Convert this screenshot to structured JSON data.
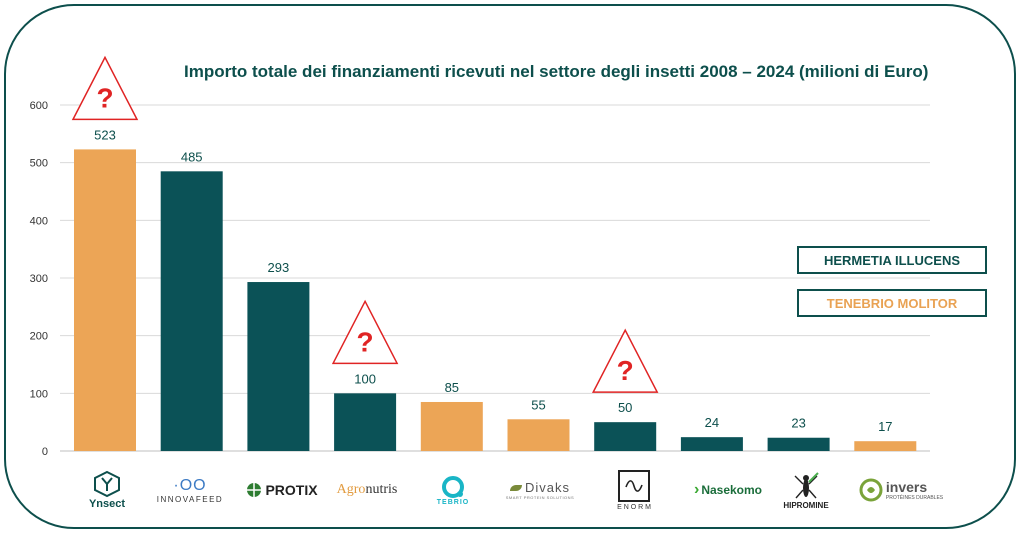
{
  "colors": {
    "hermetia": "#0b5257",
    "tenebrio": "#eca556",
    "frame": "#0d4f4c",
    "warning": "#e02424"
  },
  "chart_data": {
    "type": "bar",
    "title": "Importo totale dei finanziamenti ricevuti nel settore degli insetti 2008 – 2024 (milioni di Euro)",
    "categories": [
      "Ynsect",
      "INNOVAFEED",
      "PROTIX",
      "Agronutris",
      "TEBRIO",
      "Divaks",
      "ENORM",
      "Nasekomo",
      "HIPROMINE",
      "invers"
    ],
    "values": [
      523,
      485,
      293,
      100,
      85,
      55,
      50,
      24,
      23,
      17
    ],
    "species": [
      "tenebrio",
      "hermetia",
      "hermetia",
      "hermetia",
      "tenebrio",
      "tenebrio",
      "hermetia",
      "hermetia",
      "hermetia",
      "tenebrio"
    ],
    "labels": [
      "523",
      "485",
      "293",
      "100",
      "85",
      "55",
      "50",
      "24",
      "23",
      "17"
    ],
    "warning_marks": [
      0,
      3,
      6
    ],
    "warning_symbol": "?",
    "ylim": [
      0,
      600
    ],
    "yticks": [
      "0",
      "100",
      "200",
      "300",
      "400",
      "500",
      "600"
    ],
    "grid": true,
    "legend": [
      {
        "label": "HERMETIA ILLUCENS",
        "key": "hermetia"
      },
      {
        "label": "TENEBRIO MOLITOR",
        "key": "tenebrio"
      }
    ],
    "legend_position": "right"
  },
  "logos": {
    "ynsect": "Ynsect",
    "innovafeed_mark": "·OO",
    "innovafeed": "INNOVAFEED",
    "protix": "PROTIX",
    "agro": "Agro",
    "nutris": "nutris",
    "tebrio": "TEBRIO",
    "divaks": "Divaks",
    "divaks_sub": "SMART PROTEIN SOLUTIONS",
    "enorm": "E N O R M",
    "nasekomo": "Nasekomo",
    "hipromine": "HIPROMINE",
    "invers": "invers",
    "invers_sub": "PROTÉINES DURABLES"
  }
}
